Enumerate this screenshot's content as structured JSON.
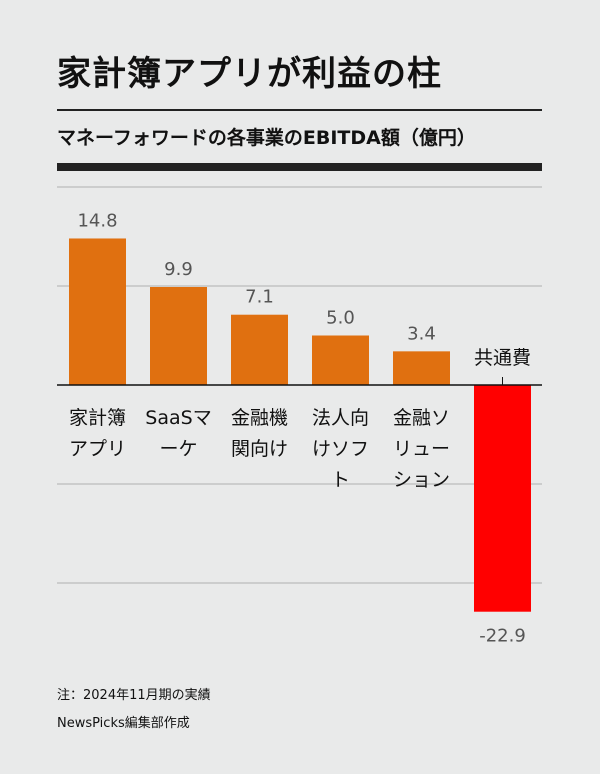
{
  "header": {
    "title": "家計簿アプリが利益の柱",
    "subtitle": "マネーフォワードの各事業のEBITDA額（億円）"
  },
  "footer": {
    "note": "注：2024年11月期の実績",
    "credit": "NewsPicks編集部作成"
  },
  "chart_data": {
    "type": "bar",
    "categories": [
      [
        "家計簿",
        "アプリ"
      ],
      [
        "SaaSマ",
        "ーケ"
      ],
      [
        "金融機",
        "関向け"
      ],
      [
        "法人向",
        "けソフ",
        "ト"
      ],
      [
        "金融ソ",
        "リュー",
        "ション"
      ],
      [
        "共通費"
      ]
    ],
    "values": [
      14.8,
      9.9,
      7.1,
      5.0,
      3.4,
      -22.9
    ],
    "value_labels": [
      "14.8",
      "9.9",
      "7.1",
      "5.0",
      "3.4",
      "-22.9"
    ],
    "ylim": [
      -25,
      15
    ],
    "gridlines": [
      10,
      -10,
      -20
    ],
    "colors": {
      "positive": "#e07010",
      "negative": "#ff0000",
      "grid": "#b0b0b0",
      "baseline": "#111111",
      "label": "#555555"
    },
    "xlabel": "",
    "ylabel": ""
  }
}
